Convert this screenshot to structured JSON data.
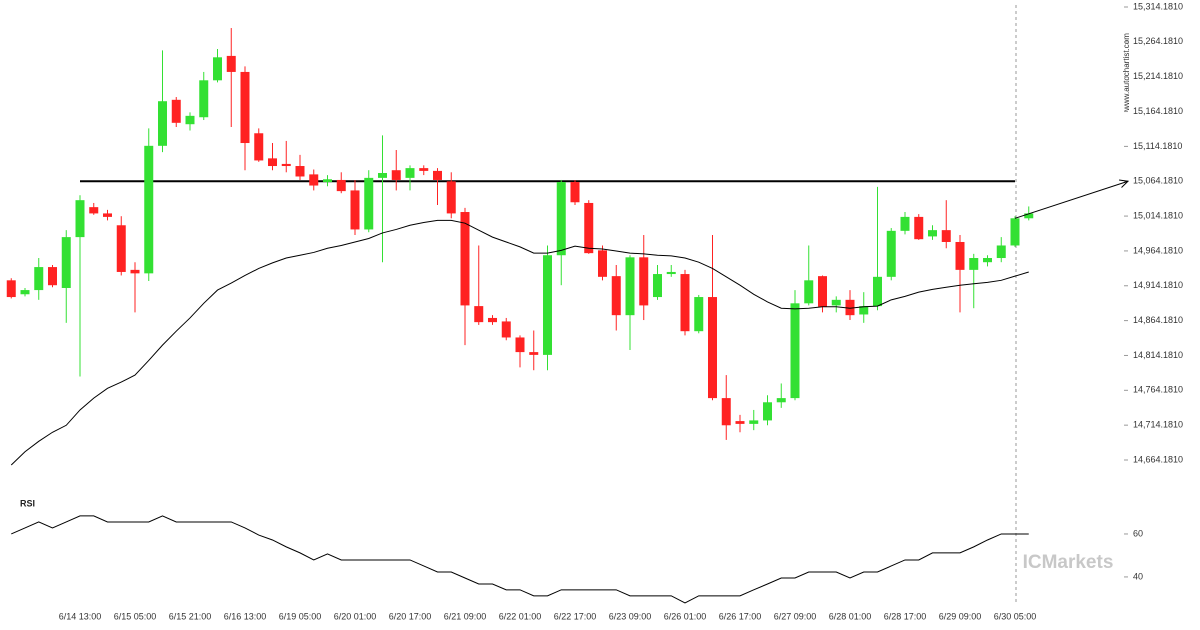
{
  "chart_data": {
    "type": "candlestick",
    "categories": [
      null,
      null,
      null,
      null,
      null,
      "6/14 13:00",
      null,
      null,
      null,
      "6/15 05:00",
      null,
      null,
      null,
      "6/15 21:00",
      null,
      null,
      null,
      "6/16 13:00",
      null,
      null,
      null,
      "6/19 05:00",
      null,
      null,
      null,
      "6/20 01:00",
      null,
      null,
      null,
      "6/20 17:00",
      null,
      null,
      null,
      "6/21 09:00",
      null,
      null,
      null,
      "6/22 01:00",
      null,
      null,
      null,
      "6/22 17:00",
      null,
      null,
      null,
      "6/23 09:00",
      null,
      null,
      null,
      "6/26 01:00",
      null,
      null,
      null,
      "6/26 17:00",
      null,
      null,
      null,
      "6/27 09:00",
      null,
      null,
      null,
      "6/28 01:00",
      null,
      null,
      null,
      "6/28 17:00",
      null,
      null,
      null,
      "6/29 09:00",
      null,
      null,
      null,
      "6/30 05:00",
      null
    ],
    "open": [
      14922,
      14902,
      14908,
      14941,
      14911,
      14984,
      15027,
      15018,
      15001,
      14937,
      14932,
      15115,
      15181,
      15146,
      15156,
      15209,
      15244,
      15221,
      15133,
      15097,
      15089,
      15086,
      15074,
      15063,
      15066,
      15051,
      14995,
      15069,
      15080,
      15069,
      15083,
      15079,
      15064,
      15020,
      14885,
      14868,
      14863,
      14840,
      14819,
      14815,
      14958,
      15063,
      15033,
      14965,
      14928,
      14872,
      14955,
      14898,
      14931,
      14931,
      14849,
      14898,
      14753,
      14720,
      14716,
      14721,
      14747,
      14753,
      14889,
      14928,
      14886,
      14894,
      14873,
      14885,
      14927,
      14993,
      15013,
      14985,
      14994,
      14977,
      14937,
      14948,
      14954,
      14972,
      15011
    ],
    "high": [
      14925,
      14911,
      14954,
      14944,
      14994,
      15044,
      15033,
      15023,
      15014,
      14948,
      15140,
      15252,
      15185,
      15163,
      15221,
      15254,
      15284,
      15229,
      15140,
      15119,
      15122,
      15102,
      15081,
      15073,
      15077,
      15066,
      15080,
      15130,
      15109,
      15087,
      15087,
      15083,
      15077,
      15026,
      14972,
      14872,
      14868,
      14843,
      14850,
      14972,
      15066,
      15066,
      15037,
      14972,
      14944,
      14958,
      14987,
      14944,
      14944,
      14937,
      14901,
      14987,
      14786,
      14729,
      14736,
      14757,
      14774,
      14908,
      14972,
      14929,
      14899,
      14908,
      14905,
      15056,
      14997,
      15020,
      15017,
      15001,
      15037,
      14987,
      14960,
      14958,
      14984,
      15014,
      15028
    ],
    "low": [
      14896,
      14899,
      14894,
      14912,
      14861,
      14784,
      15016,
      15008,
      14929,
      14876,
      14921,
      15106,
      15142,
      15137,
      15152,
      15206,
      15142,
      15080,
      15092,
      15080,
      15077,
      15066,
      15051,
      15057,
      15047,
      14987,
      14991,
      14948,
      15051,
      15051,
      15073,
      15030,
      15011,
      14829,
      14858,
      14858,
      14836,
      14797,
      14793,
      14793,
      14915,
      15030,
      14960,
      14922,
      14850,
      14822,
      14865,
      14894,
      14927,
      14843,
      14846,
      14750,
      14693,
      14704,
      14707,
      14714,
      14739,
      14750,
      14886,
      14876,
      14876,
      14865,
      14861,
      14879,
      14922,
      14988,
      14980,
      14980,
      14968,
      14876,
      14882,
      14942,
      14948,
      14970,
      15008
    ],
    "close": [
      14898,
      14908,
      14941,
      14915,
      14984,
      15037,
      15018,
      15013,
      14934,
      14932,
      15115,
      15179,
      15148,
      15158,
      15209,
      15242,
      15221,
      15119,
      15094,
      15086,
      15086,
      15071,
      15058,
      15067,
      15050,
      14995,
      15069,
      15076,
      15066,
      15083,
      15079,
      15066,
      15018,
      14886,
      14862,
      14862,
      14840,
      14819,
      14815,
      14958,
      15063,
      15034,
      14961,
      14927,
      14872,
      14955,
      14886,
      14931,
      14934,
      14849,
      14898,
      14753,
      14714,
      14716,
      14721,
      14747,
      14753,
      14889,
      14922,
      14884,
      14894,
      14872,
      14885,
      14927,
      14993,
      15013,
      14981,
      14994,
      14977,
      14937,
      14954,
      14954,
      14972,
      15011,
      15018
    ],
    "up_color": "#33e033",
    "down_color": "#ff2222",
    "moving_average": {
      "color": "#000000",
      "values": [
        14657,
        14676,
        14691,
        14704,
        14714,
        14736,
        14753,
        14767,
        14776,
        14786,
        14807,
        14829,
        14849,
        14868,
        14889,
        14908,
        14918,
        14929,
        14939,
        14947,
        14954,
        14958,
        14962,
        14968,
        14972,
        14977,
        14982,
        14990,
        14995,
        15001,
        15005,
        15008,
        15008,
        15004,
        14994,
        14984,
        14977,
        14970,
        14961,
        14961,
        14965,
        14971,
        14968,
        14967,
        14964,
        14961,
        14960,
        14958,
        14957,
        14954,
        14948,
        14939,
        14927,
        14915,
        14902,
        14891,
        14882,
        14881,
        14882,
        14884,
        14884,
        14882,
        14884,
        14885,
        14894,
        14899,
        14905,
        14909,
        14912,
        14915,
        14917,
        14919,
        14922,
        14928,
        14934
      ]
    },
    "level": 15064.181,
    "forecast": {
      "start": 15011,
      "end": 15064.181
    },
    "ylim": [
      14664.181,
      15314.181
    ],
    "yticks": [
      {
        "value": 14664.181,
        "label": "14,664.1810"
      },
      {
        "value": 14714.181,
        "label": "14,714.1810"
      },
      {
        "value": 14764.181,
        "label": "14,764.1810"
      },
      {
        "value": 14814.181,
        "label": "14,814.1810"
      },
      {
        "value": 14864.181,
        "label": "14,864.1810"
      },
      {
        "value": 14914.181,
        "label": "14,914.1810"
      },
      {
        "value": 14964.181,
        "label": "14,964.1810"
      },
      {
        "value": 15014.181,
        "label": "15,014.1810"
      },
      {
        "value": 15064.181,
        "label": "15,064.1810"
      },
      {
        "value": 15114.181,
        "label": "15,114.1810"
      },
      {
        "value": 15164.181,
        "label": "15,164.1810"
      },
      {
        "value": 15214.181,
        "label": "15,214.1810"
      },
      {
        "value": 15264.181,
        "label": "15,264.1810"
      },
      {
        "value": 15314.181,
        "label": "15,314.1810"
      }
    ],
    "rsi": {
      "label": "RSI",
      "color": "#000000",
      "ylim": [
        26,
        76
      ],
      "yticks": [
        40,
        60
      ],
      "values": [
        60,
        62.8,
        65.6,
        62.8,
        65.6,
        68.4,
        68.4,
        65.6,
        65.6,
        65.6,
        65.6,
        68.4,
        65.6,
        65.6,
        65.6,
        65.6,
        65.6,
        62.8,
        59.5,
        57.2,
        54,
        51.2,
        47.9,
        50.7,
        47.9,
        47.9,
        47.9,
        47.9,
        47.9,
        47.9,
        45.1,
        42.3,
        42.3,
        39.5,
        36.7,
        36.7,
        34,
        34,
        31.2,
        31.2,
        34,
        34,
        34,
        34,
        34,
        31.2,
        31.2,
        31.2,
        31.2,
        27.9,
        31.2,
        31.2,
        31.2,
        31.2,
        34,
        36.7,
        39.5,
        39.5,
        42.3,
        42.3,
        42.3,
        39.5,
        42.3,
        42.3,
        45.1,
        47.9,
        47.9,
        51.2,
        51.2,
        51.2,
        54,
        57.2,
        60,
        60,
        60
      ]
    },
    "source": "www.autochartist.com",
    "brand": "ICMarkets"
  }
}
